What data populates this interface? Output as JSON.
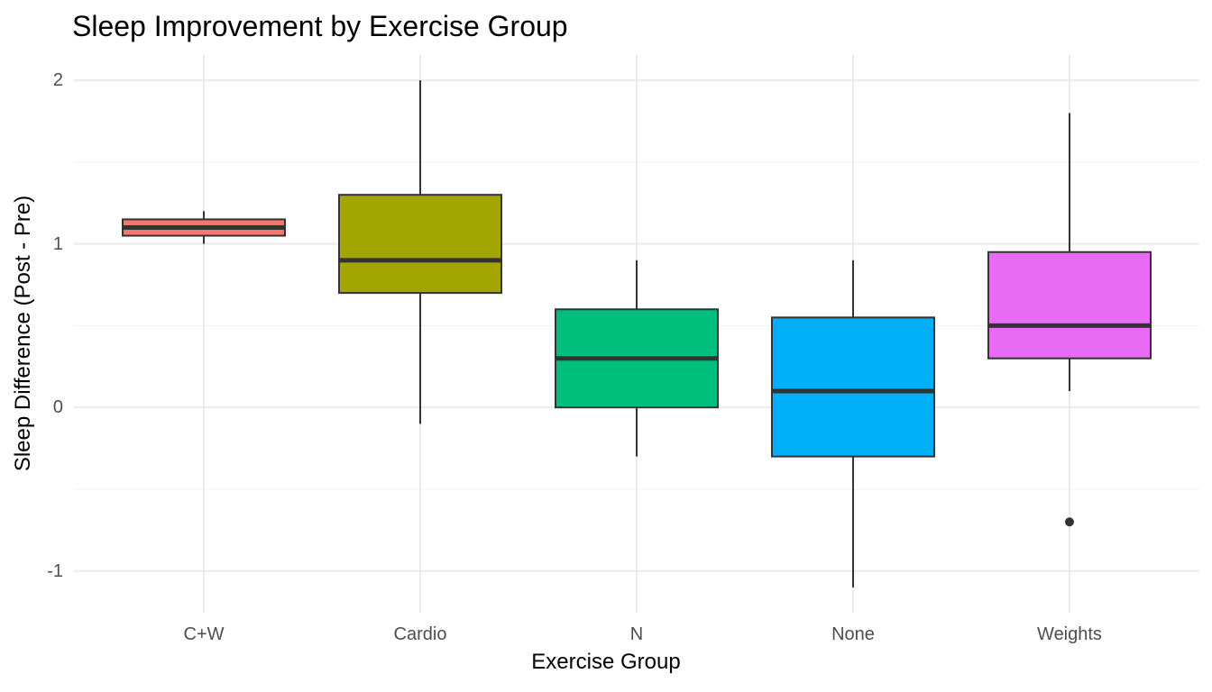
{
  "title": "Sleep Improvement by Exercise Group",
  "colors": {
    "box_outline": "#333333",
    "median_line": "#333333",
    "whisker": "#333333",
    "outlier": "#333333",
    "grid_major": "#ebebeb",
    "grid_minor": "#f1f1f1",
    "tick_label": "#4d4d4d",
    "title_text": "#000000",
    "background": "#ffffff"
  },
  "x_axis": {
    "label": "Exercise Group",
    "categories": [
      "C+W",
      "Cardio",
      "N",
      "None",
      "Weights"
    ]
  },
  "y_axis": {
    "label": "Sleep Difference (Post - Pre)",
    "major_ticks": [
      {
        "value": 2,
        "label": "2"
      },
      {
        "value": 1,
        "label": "1"
      },
      {
        "value": 0,
        "label": "0"
      },
      {
        "value": -1,
        "label": "-1"
      }
    ],
    "minor_ticks": [
      1.5,
      0.5,
      -0.5
    ]
  },
  "chart_data": {
    "type": "boxplot",
    "title": "Sleep Improvement by Exercise Group",
    "xlabel": "Exercise Group",
    "ylabel": "Sleep Difference (Post - Pre)",
    "categories": [
      "C+W",
      "Cardio",
      "N",
      "None",
      "Weights"
    ],
    "ylim": [
      -1.255,
      2.155
    ],
    "grid": true,
    "legend": false,
    "series": [
      {
        "name": "C+W",
        "color": "#F8766D",
        "whisker_low": 1.0,
        "q1": 1.05,
        "median": 1.1,
        "q3": 1.15,
        "whisker_high": 1.2,
        "outliers": []
      },
      {
        "name": "Cardio",
        "color": "#A3A500",
        "whisker_low": -0.1,
        "q1": 0.7,
        "median": 0.9,
        "q3": 1.3,
        "whisker_high": 2.0,
        "outliers": []
      },
      {
        "name": "N",
        "color": "#00BF7D",
        "whisker_low": -0.3,
        "q1": 0.0,
        "median": 0.3,
        "q3": 0.6,
        "whisker_high": 0.9,
        "outliers": []
      },
      {
        "name": "None",
        "color": "#00B0F6",
        "whisker_low": -1.1,
        "q1": -0.3,
        "median": 0.1,
        "q3": 0.55,
        "whisker_high": 0.9,
        "outliers": []
      },
      {
        "name": "Weights",
        "color": "#E76BF3",
        "whisker_low": 0.1,
        "q1": 0.3,
        "median": 0.5,
        "q3": 0.95,
        "whisker_high": 1.8,
        "outliers": [
          -0.7
        ]
      }
    ]
  }
}
